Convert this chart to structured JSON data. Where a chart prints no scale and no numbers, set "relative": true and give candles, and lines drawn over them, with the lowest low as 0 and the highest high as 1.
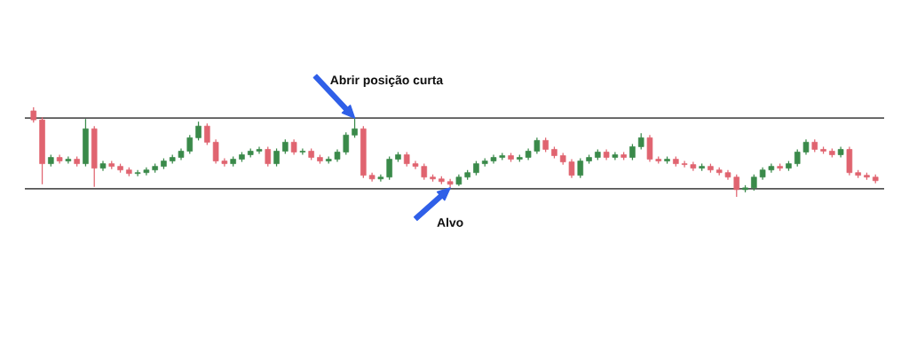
{
  "chart_data": {
    "type": "candlestick",
    "relative": true,
    "tick_labels": false,
    "categories": [
      null,
      null,
      null,
      null,
      null,
      null,
      null,
      null,
      null,
      null,
      null,
      null,
      null,
      null,
      null,
      null,
      null,
      null,
      null,
      null,
      null,
      null,
      null,
      null,
      null,
      null,
      null,
      null,
      null,
      null,
      null,
      null,
      null,
      null,
      null,
      null,
      null,
      null,
      null,
      null,
      null,
      null,
      null,
      null,
      null,
      null,
      null,
      null,
      null,
      null,
      null,
      null,
      null,
      null,
      null,
      null,
      null,
      null,
      null,
      null,
      null,
      null,
      null,
      null,
      null,
      null,
      null,
      null,
      null,
      null,
      null,
      null,
      null,
      null,
      null,
      null,
      null,
      null,
      null,
      null,
      null,
      null,
      null,
      null,
      null,
      null,
      null,
      null,
      null,
      null,
      null,
      null,
      null,
      null,
      null,
      null,
      null,
      null
    ],
    "ohlc": [
      [
        0.96,
        1.0,
        0.83,
        0.86
      ],
      [
        0.86,
        0.89,
        0.14,
        0.37
      ],
      [
        0.37,
        0.47,
        0.34,
        0.44
      ],
      [
        0.44,
        0.47,
        0.37,
        0.4
      ],
      [
        0.4,
        0.45,
        0.37,
        0.42
      ],
      [
        0.42,
        0.45,
        0.34,
        0.37
      ],
      [
        0.37,
        0.87,
        0.34,
        0.76
      ],
      [
        0.76,
        0.79,
        0.11,
        0.32
      ],
      [
        0.32,
        0.4,
        0.29,
        0.37
      ],
      [
        0.37,
        0.4,
        0.31,
        0.34
      ],
      [
        0.34,
        0.37,
        0.27,
        0.3
      ],
      [
        0.3,
        0.33,
        0.23,
        0.26
      ],
      [
        0.26,
        0.3,
        0.23,
        0.27
      ],
      [
        0.27,
        0.33,
        0.24,
        0.3
      ],
      [
        0.3,
        0.37,
        0.27,
        0.34
      ],
      [
        0.34,
        0.43,
        0.31,
        0.4
      ],
      [
        0.4,
        0.47,
        0.37,
        0.44
      ],
      [
        0.44,
        0.54,
        0.41,
        0.51
      ],
      [
        0.51,
        0.69,
        0.48,
        0.66
      ],
      [
        0.66,
        0.84,
        0.63,
        0.79
      ],
      [
        0.79,
        0.82,
        0.58,
        0.61
      ],
      [
        0.61,
        0.64,
        0.37,
        0.4
      ],
      [
        0.4,
        0.43,
        0.34,
        0.37
      ],
      [
        0.37,
        0.45,
        0.34,
        0.42
      ],
      [
        0.42,
        0.5,
        0.39,
        0.47
      ],
      [
        0.47,
        0.54,
        0.44,
        0.51
      ],
      [
        0.51,
        0.56,
        0.48,
        0.53
      ],
      [
        0.53,
        0.56,
        0.34,
        0.37
      ],
      [
        0.37,
        0.54,
        0.34,
        0.51
      ],
      [
        0.51,
        0.64,
        0.48,
        0.61
      ],
      [
        0.61,
        0.64,
        0.47,
        0.5
      ],
      [
        0.5,
        0.54,
        0.47,
        0.51
      ],
      [
        0.51,
        0.54,
        0.41,
        0.44
      ],
      [
        0.44,
        0.47,
        0.37,
        0.4
      ],
      [
        0.4,
        0.45,
        0.37,
        0.42
      ],
      [
        0.42,
        0.53,
        0.39,
        0.5
      ],
      [
        0.5,
        0.72,
        0.47,
        0.69
      ],
      [
        0.69,
        0.88,
        0.66,
        0.76
      ],
      [
        0.76,
        0.79,
        0.21,
        0.24
      ],
      [
        0.24,
        0.27,
        0.17,
        0.2
      ],
      [
        0.2,
        0.25,
        0.17,
        0.22
      ],
      [
        0.22,
        0.45,
        0.19,
        0.42
      ],
      [
        0.42,
        0.5,
        0.39,
        0.47
      ],
      [
        0.47,
        0.5,
        0.34,
        0.37
      ],
      [
        0.37,
        0.4,
        0.31,
        0.34
      ],
      [
        0.34,
        0.37,
        0.19,
        0.22
      ],
      [
        0.22,
        0.25,
        0.17,
        0.2
      ],
      [
        0.2,
        0.23,
        0.14,
        0.17
      ],
      [
        0.17,
        0.2,
        0.1,
        0.14
      ],
      [
        0.14,
        0.25,
        0.12,
        0.22
      ],
      [
        0.22,
        0.3,
        0.19,
        0.27
      ],
      [
        0.27,
        0.4,
        0.24,
        0.37
      ],
      [
        0.37,
        0.43,
        0.34,
        0.4
      ],
      [
        0.4,
        0.47,
        0.37,
        0.44
      ],
      [
        0.44,
        0.49,
        0.41,
        0.46
      ],
      [
        0.46,
        0.49,
        0.39,
        0.42
      ],
      [
        0.42,
        0.47,
        0.39,
        0.44
      ],
      [
        0.44,
        0.54,
        0.41,
        0.51
      ],
      [
        0.51,
        0.66,
        0.48,
        0.63
      ],
      [
        0.63,
        0.66,
        0.5,
        0.53
      ],
      [
        0.53,
        0.56,
        0.43,
        0.46
      ],
      [
        0.46,
        0.49,
        0.36,
        0.39
      ],
      [
        0.39,
        0.42,
        0.21,
        0.24
      ],
      [
        0.24,
        0.43,
        0.21,
        0.4
      ],
      [
        0.4,
        0.47,
        0.37,
        0.44
      ],
      [
        0.44,
        0.53,
        0.41,
        0.5
      ],
      [
        0.5,
        0.53,
        0.41,
        0.44
      ],
      [
        0.44,
        0.5,
        0.41,
        0.47
      ],
      [
        0.47,
        0.5,
        0.41,
        0.44
      ],
      [
        0.44,
        0.59,
        0.41,
        0.56
      ],
      [
        0.56,
        0.71,
        0.53,
        0.66
      ],
      [
        0.66,
        0.69,
        0.39,
        0.42
      ],
      [
        0.42,
        0.45,
        0.37,
        0.4
      ],
      [
        0.4,
        0.45,
        0.37,
        0.42
      ],
      [
        0.42,
        0.45,
        0.34,
        0.37
      ],
      [
        0.37,
        0.4,
        0.33,
        0.36
      ],
      [
        0.36,
        0.39,
        0.29,
        0.32
      ],
      [
        0.32,
        0.37,
        0.29,
        0.34
      ],
      [
        0.34,
        0.37,
        0.27,
        0.3
      ],
      [
        0.3,
        0.33,
        0.24,
        0.27
      ],
      [
        0.27,
        0.3,
        0.19,
        0.22
      ],
      [
        0.22,
        0.25,
        0.0,
        0.08
      ],
      [
        0.08,
        0.13,
        0.05,
        0.1
      ],
      [
        0.1,
        0.25,
        0.07,
        0.22
      ],
      [
        0.22,
        0.33,
        0.19,
        0.3
      ],
      [
        0.3,
        0.37,
        0.27,
        0.34
      ],
      [
        0.34,
        0.37,
        0.29,
        0.32
      ],
      [
        0.32,
        0.4,
        0.29,
        0.37
      ],
      [
        0.37,
        0.53,
        0.34,
        0.5
      ],
      [
        0.5,
        0.64,
        0.47,
        0.61
      ],
      [
        0.61,
        0.64,
        0.5,
        0.53
      ],
      [
        0.53,
        0.56,
        0.48,
        0.51
      ],
      [
        0.51,
        0.54,
        0.44,
        0.47
      ],
      [
        0.47,
        0.56,
        0.44,
        0.53
      ],
      [
        0.53,
        0.56,
        0.24,
        0.27
      ],
      [
        0.27,
        0.3,
        0.21,
        0.24
      ],
      [
        0.24,
        0.27,
        0.19,
        0.22
      ],
      [
        0.22,
        0.25,
        0.15,
        0.18
      ]
    ],
    "ref_lines": [
      {
        "axis": "y",
        "value": 0.88,
        "color": "#555555"
      },
      {
        "axis": "y",
        "value": 0.09,
        "color": "#555555"
      }
    ],
    "annotations": [
      {
        "text": "Abrir posição curta",
        "y": 0.88
      },
      {
        "text": "Alvo",
        "y": 0.1
      }
    ]
  }
}
